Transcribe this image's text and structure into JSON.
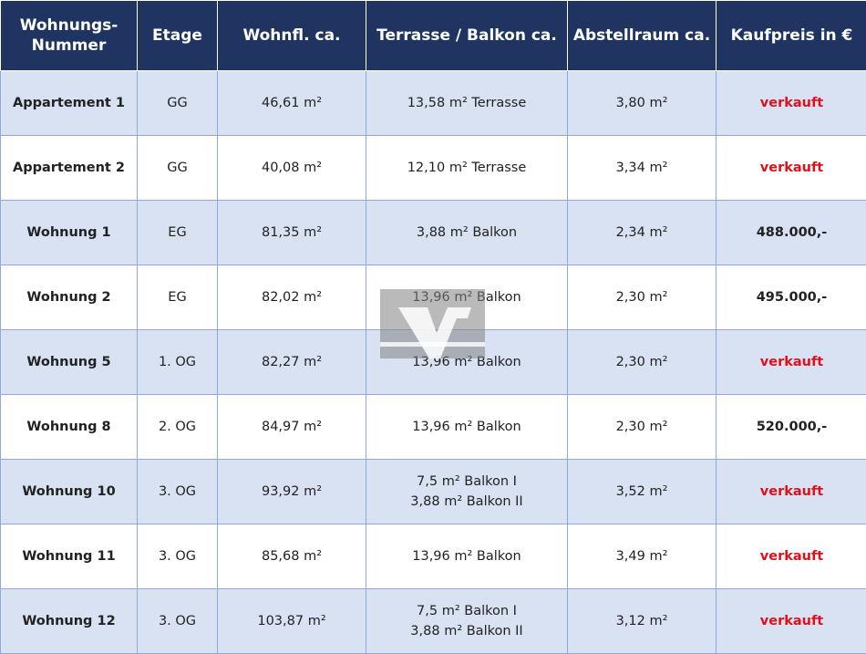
{
  "headers": [
    "Wohnungs-\nNummer",
    "Etage",
    "Wohnfl. ca.",
    "Terrasse / Balkon ca.",
    "Abstellraum ca.",
    "Kaufpreis in €"
  ],
  "header_lines": [
    [
      "Wohnungs-",
      "Nummer"
    ]
  ],
  "rows": [
    {
      "name": "Appartement 1",
      "etage": "GG",
      "wohnfl": "46,61 m²",
      "terrasse": [
        "13,58 m² Terrasse"
      ],
      "abstell": "3,80 m²",
      "preis": "verkauft",
      "sold": true
    },
    {
      "name": "Appartement 2",
      "etage": "GG",
      "wohnfl": "40,08 m²",
      "terrasse": [
        "12,10 m² Terrasse"
      ],
      "abstell": "3,34 m²",
      "preis": "verkauft",
      "sold": true
    },
    {
      "name": "Wohnung 1",
      "etage": "EG",
      "wohnfl": "81,35 m²",
      "terrasse": [
        "3,88 m² Balkon"
      ],
      "abstell": "2,34 m²",
      "preis": "488.000,-",
      "sold": false
    },
    {
      "name": "Wohnung 2",
      "etage": "EG",
      "wohnfl": "82,02 m²",
      "terrasse": [
        "13,96 m² Balkon"
      ],
      "abstell": "2,30 m²",
      "preis": "495.000,-",
      "sold": false
    },
    {
      "name": "Wohnung 5",
      "etage": "1. OG",
      "wohnfl": "82,27 m²",
      "terrasse": [
        "13,96 m² Balkon"
      ],
      "abstell": "2,30 m²",
      "preis": "verkauft",
      "sold": true
    },
    {
      "name": "Wohnung 8",
      "etage": "2. OG",
      "wohnfl": "84,97 m²",
      "terrasse": [
        "13,96 m² Balkon"
      ],
      "abstell": "2,30 m²",
      "preis": "520.000,-",
      "sold": false
    },
    {
      "name": "Wohnung 10",
      "etage": "3. OG",
      "wohnfl": "93,92 m²",
      "terrasse": [
        "7,5 m² Balkon I",
        "3,88 m² Balkon II"
      ],
      "abstell": "3,52 m²",
      "preis": "verkauft",
      "sold": true
    },
    {
      "name": "Wohnung 11",
      "etage": "3. OG",
      "wohnfl": "85,68 m²",
      "terrasse": [
        "13,96 m² Balkon"
      ],
      "abstell": "3,49 m²",
      "preis": "verkauft",
      "sold": true
    },
    {
      "name": "Wohnung 12",
      "etage": "3. OG",
      "wohnfl": "103,87 m²",
      "terrasse": [
        "7,5 m² Balkon I",
        "3,88 m² Balkon II"
      ],
      "abstell": "3,12 m²",
      "preis": "verkauft",
      "sold": true
    }
  ],
  "colors": {
    "header_bg": "#1f3461",
    "row_alt": "#d9e2f3",
    "sold": "#e0101a",
    "border": "#8eaadb"
  },
  "watermark_icon": "vr-bank-logo"
}
